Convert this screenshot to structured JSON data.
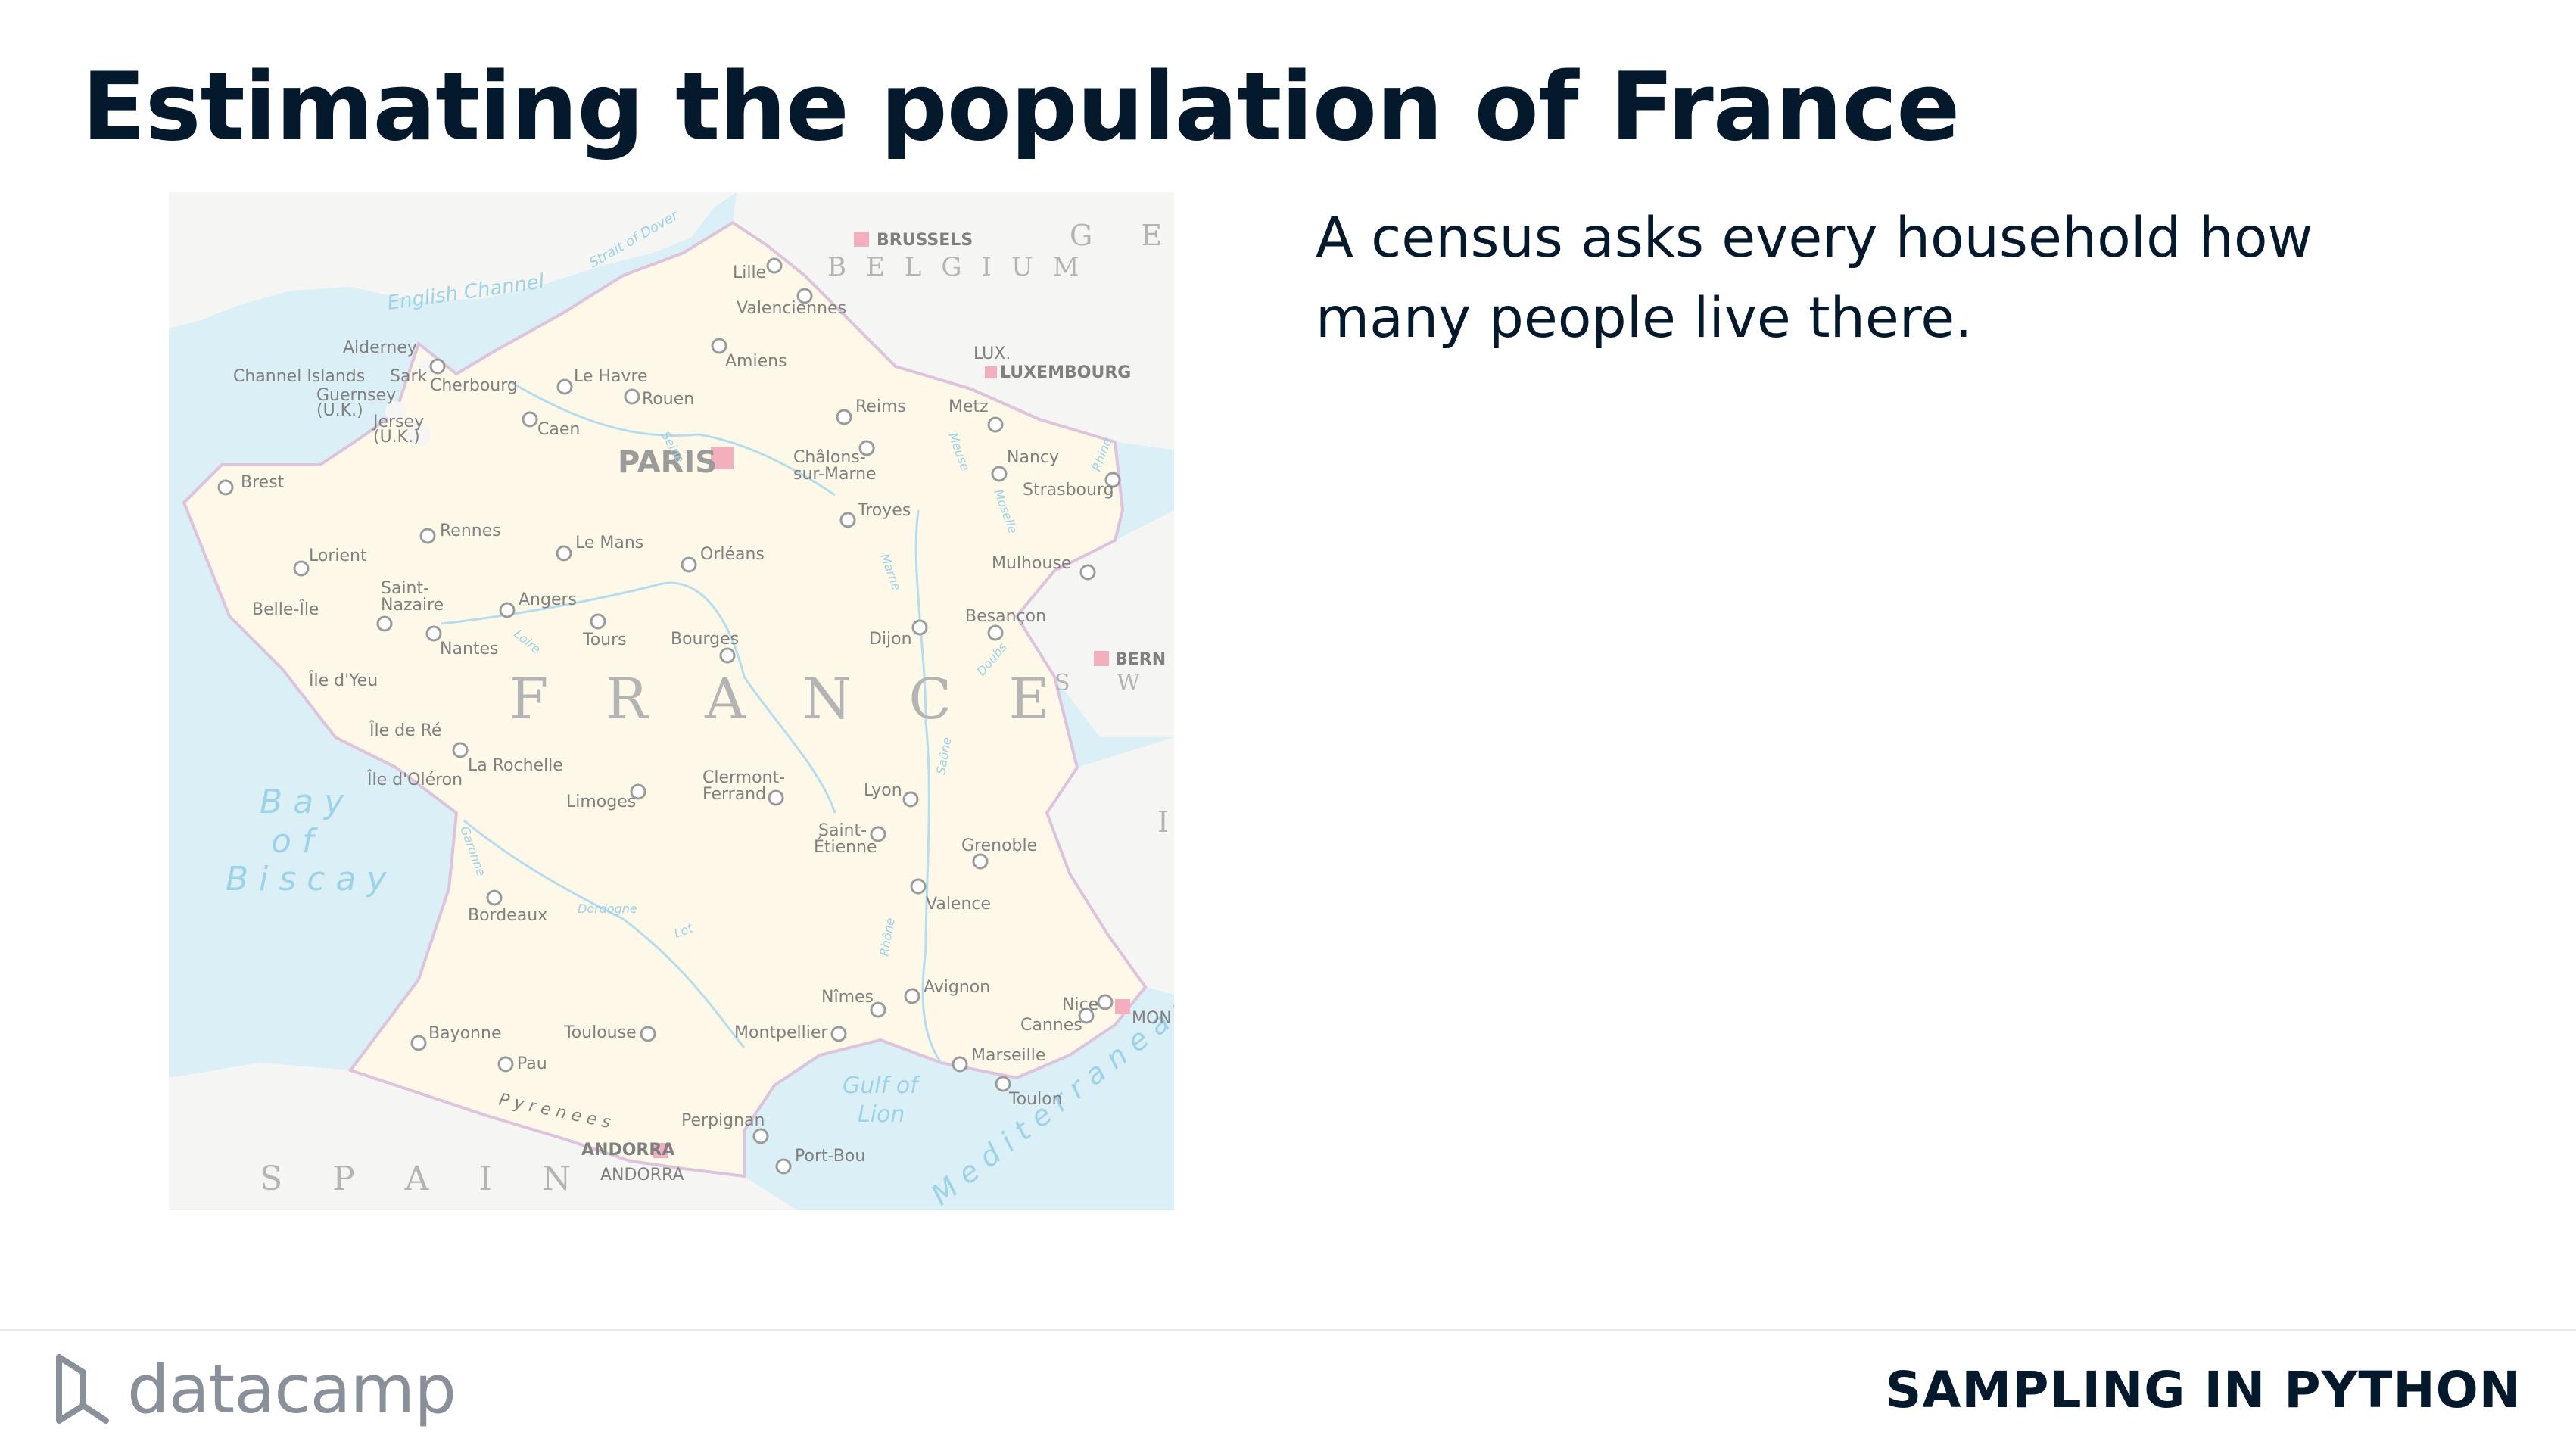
{
  "slide": {
    "title": "Estimating the population of France",
    "bullet": "A census asks every household how many people live there.",
    "course": "SAMPLING IN PYTHON",
    "logo_text": "datacamp"
  },
  "map": {
    "country_label": "F R A N C E",
    "capital_label": "PARIS",
    "neighbors": {
      "belgium": "BELGIUM",
      "germany": "G E R",
      "switzerland": "S W I T Z E",
      "spain": "S P A I N",
      "italy": "I",
      "brussels": "BRUSSELS",
      "luxembourg_short": "LUX.",
      "luxembourg": "LUXEMBOURG",
      "bern": "BERN",
      "andorra_city": "ANDORRA",
      "andorra": "ANDORRA",
      "monaco": "MON"
    },
    "seas": {
      "english_channel": "English Channel",
      "strait": "Strait of Dover",
      "bay1": "B a y",
      "bay2": "o f",
      "bay3": "B i s c a y",
      "gulf1": "Gulf of",
      "gulf2": "Lion",
      "med": "M e d i t e r r a n e a n"
    },
    "islands": {
      "channel_islands": "Channel Islands",
      "alderney": "Alderney",
      "sark": "Sark",
      "guernsey": "Guernsey",
      "guernsey_uk": "(U.K.)",
      "jersey": "Jersey",
      "jersey_uk": "(U.K.)",
      "belle_ile": "Belle-Île",
      "ile_yeu": "Île d'Yeu",
      "ile_re": "Île de Ré",
      "ile_oleron": "Île d'Oléron"
    },
    "cities": {
      "lille": "Lille",
      "valenciennes": "Valenciennes",
      "amiens": "Amiens",
      "le_havre": "Le Havre",
      "rouen": "Rouen",
      "cherbourg": "Cherbourg",
      "caen": "Caen",
      "brest": "Brest",
      "rennes": "Rennes",
      "lorient": "Lorient",
      "saint_nazaire1": "Saint-",
      "saint_nazaire2": "Nazaire",
      "nantes": "Nantes",
      "angers": "Angers",
      "le_mans": "Le Mans",
      "orleans": "Orléans",
      "tours": "Tours",
      "bourges": "Bourges",
      "reims": "Reims",
      "chalons1": "Châlons-",
      "chalons2": "sur-Marne",
      "troyes": "Troyes",
      "metz": "Metz",
      "nancy": "Nancy",
      "strasbourg": "Strasbourg",
      "mulhouse": "Mulhouse",
      "besancon": "Besançon",
      "dijon": "Dijon",
      "la_rochelle": "La Rochelle",
      "limoges": "Limoges",
      "clermont1": "Clermont-",
      "clermont2": "Ferrand",
      "lyon": "Lyon",
      "saint_etienne1": "Saint-",
      "saint_etienne2": "Étienne",
      "grenoble": "Grenoble",
      "valence": "Valence",
      "bordeaux": "Bordeaux",
      "bayonne": "Bayonne",
      "pau": "Pau",
      "toulouse": "Toulouse",
      "montpellier": "Montpellier",
      "nimes": "Nîmes",
      "avignon": "Avignon",
      "marseille": "Marseille",
      "toulon": "Toulon",
      "nice": "Nice",
      "cannes": "Cannes",
      "perpignan": "Perpignan",
      "port_bou": "Port-Bou"
    },
    "mountains": {
      "pyrenees": "P y r e n e e s"
    },
    "rivers": {
      "seine": "Seine",
      "loire": "Loire",
      "garonne": "Garonne",
      "dordogne": "Dordogne",
      "lot": "Lot",
      "rhone": "Rhône",
      "saone": "Saône",
      "marne": "Marne",
      "meuse": "Meuse",
      "moselle": "Moselle",
      "rhine": "Rhine",
      "doubs": "Doubs"
    },
    "colors": {
      "sea": "#d5edf6",
      "france": "#fdf7e4",
      "neighbors": "#f4f5f1",
      "border": "#d9b9d6",
      "capital_marker": "#f0a3b4"
    }
  }
}
